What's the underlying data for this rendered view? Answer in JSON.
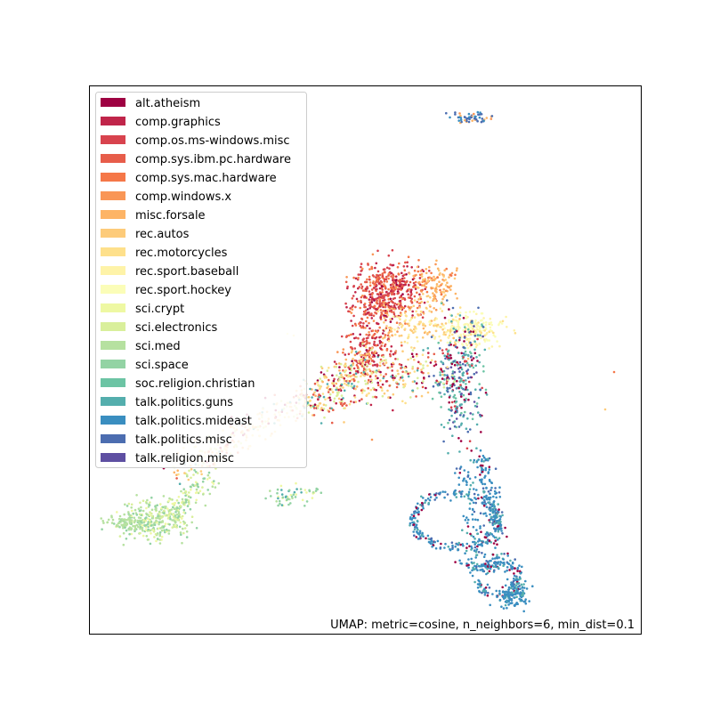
{
  "chart_data": {
    "type": "scatter",
    "annotation": "UMAP: metric=cosine, n_neighbors=6, min_dist=0.1",
    "legend_placement": "upper-left",
    "axes_visible": false,
    "grid": false,
    "point_colors": {
      "alt.atheism": "#9e0142",
      "comp.graphics": "#c0254a",
      "comp.os.ms-windows.misc": "#d8434e",
      "comp.sys.ibm.pc.hardware": "#e75d4a",
      "comp.sys.mac.hardware": "#f57748",
      "comp.windows.x": "#f99656",
      "misc.forsale": "#fdb466",
      "rec.autos": "#fdcb7a",
      "rec.motorcycles": "#fee08b",
      "rec.sport.baseball": "#fef3a8",
      "rec.sport.hockey": "#fbfdb8",
      "sci.crypt": "#eef8a3",
      "sci.electronics": "#d9ef9b",
      "sci.med": "#b6e1a0",
      "sci.space": "#93d3a4",
      "soc.religion.christian": "#6cc4a4",
      "talk.politics.guns": "#54aead",
      "talk.politics.mideast": "#3a8ec0",
      "talk.politics.misc": "#4c6db0",
      "talk.religion.misc": "#5e4fa2"
    },
    "legend": [
      {
        "label": "alt.atheism",
        "color": "#9e0142"
      },
      {
        "label": "comp.graphics",
        "color": "#c0254a"
      },
      {
        "label": "comp.os.ms-windows.misc",
        "color": "#d8434e"
      },
      {
        "label": "comp.sys.ibm.pc.hardware",
        "color": "#e75d4a"
      },
      {
        "label": "comp.sys.mac.hardware",
        "color": "#f57748"
      },
      {
        "label": "comp.windows.x",
        "color": "#f99656"
      },
      {
        "label": "misc.forsale",
        "color": "#fdb466"
      },
      {
        "label": "rec.autos",
        "color": "#fdcb7a"
      },
      {
        "label": "rec.motorcycles",
        "color": "#fee08b"
      },
      {
        "label": "rec.sport.baseball",
        "color": "#fef3a8"
      },
      {
        "label": "rec.sport.hockey",
        "color": "#fbfdb8"
      },
      {
        "label": "sci.crypt",
        "color": "#eef8a3"
      },
      {
        "label": "sci.electronics",
        "color": "#d9ef9b"
      },
      {
        "label": "sci.med",
        "color": "#b6e1a0"
      },
      {
        "label": "sci.space",
        "color": "#93d3a4"
      },
      {
        "label": "soc.religion.christian",
        "color": "#6cc4a4"
      },
      {
        "label": "talk.politics.guns",
        "color": "#54aead"
      },
      {
        "label": "talk.politics.mideast",
        "color": "#3a8ec0"
      },
      {
        "label": "talk.politics.misc",
        "color": "#4c6db0"
      },
      {
        "label": "talk.religion.misc",
        "color": "#5e4fa2"
      }
    ]
  }
}
